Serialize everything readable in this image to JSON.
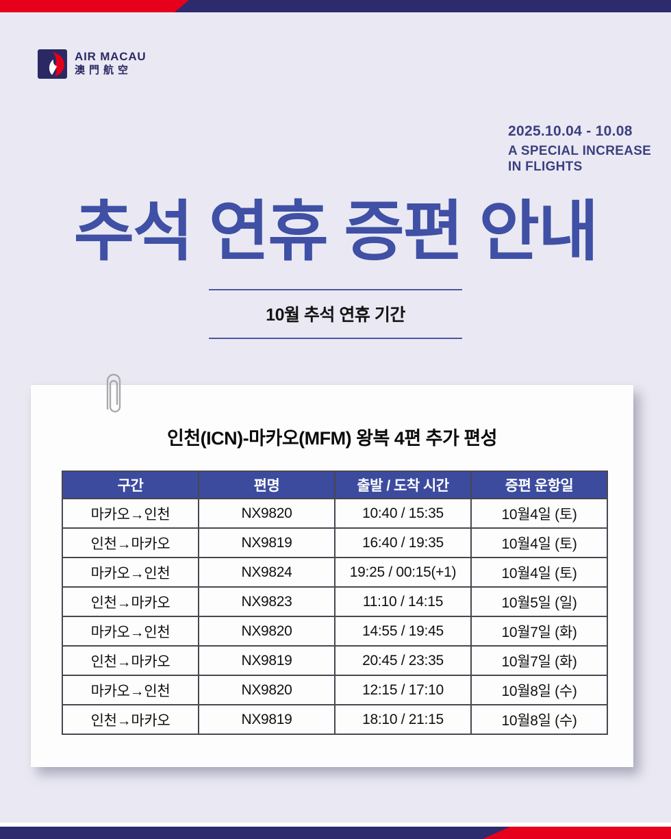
{
  "brand": {
    "name": "AIR MACAU",
    "name_cn": "澳門航空"
  },
  "promo": {
    "date_range": "2025.10.04 - 10.08",
    "tagline_line1": "A SPECIAL INCREASE",
    "tagline_line2": "IN FLIGHTS"
  },
  "title": "추석 연휴 증편 안내",
  "subtitle": "10월 추석 연휴 기간",
  "card": {
    "title": "인천(ICN)-마카오(MFM) 왕복 4편 추가 편성",
    "table": {
      "headers": [
        "구간",
        "편명",
        "출발 / 도착 시간",
        "증편 운항일"
      ],
      "rows": [
        [
          "마카오→인천",
          "NX9820",
          "10:40 / 15:35",
          "10월4일 (토)"
        ],
        [
          "인천→마카오",
          "NX9819",
          "16:40 / 19:35",
          "10월4일 (토)"
        ],
        [
          "마카오→인천",
          "NX9824",
          "19:25 / 00:15(+1)",
          "10월4일 (토)"
        ],
        [
          "인천→마카오",
          "NX9823",
          "11:10 / 14:15",
          "10월5일 (일)"
        ],
        [
          "마카오→인천",
          "NX9820",
          "14:55 / 19:45",
          "10월7일 (화)"
        ],
        [
          "인천→마카오",
          "NX9819",
          "20:45 / 23:35",
          "10월7일 (화)"
        ],
        [
          "마카오→인천",
          "NX9820",
          "12:15 / 17:10",
          "10월8일 (수)"
        ],
        [
          "인천→마카오",
          "NX9819",
          "18:10 / 21:15",
          "10월8일 (수)"
        ]
      ]
    }
  },
  "colors": {
    "background": "#eae9f3",
    "bar_red": "#e6001c",
    "bar_navy": "#2e2a6e",
    "title_blue": "#3f50a5",
    "promo_text": "#3c3f80",
    "table_header_bg": "#3c4b9e",
    "table_border": "#47474f",
    "card_bg": "#fdfdfe"
  }
}
